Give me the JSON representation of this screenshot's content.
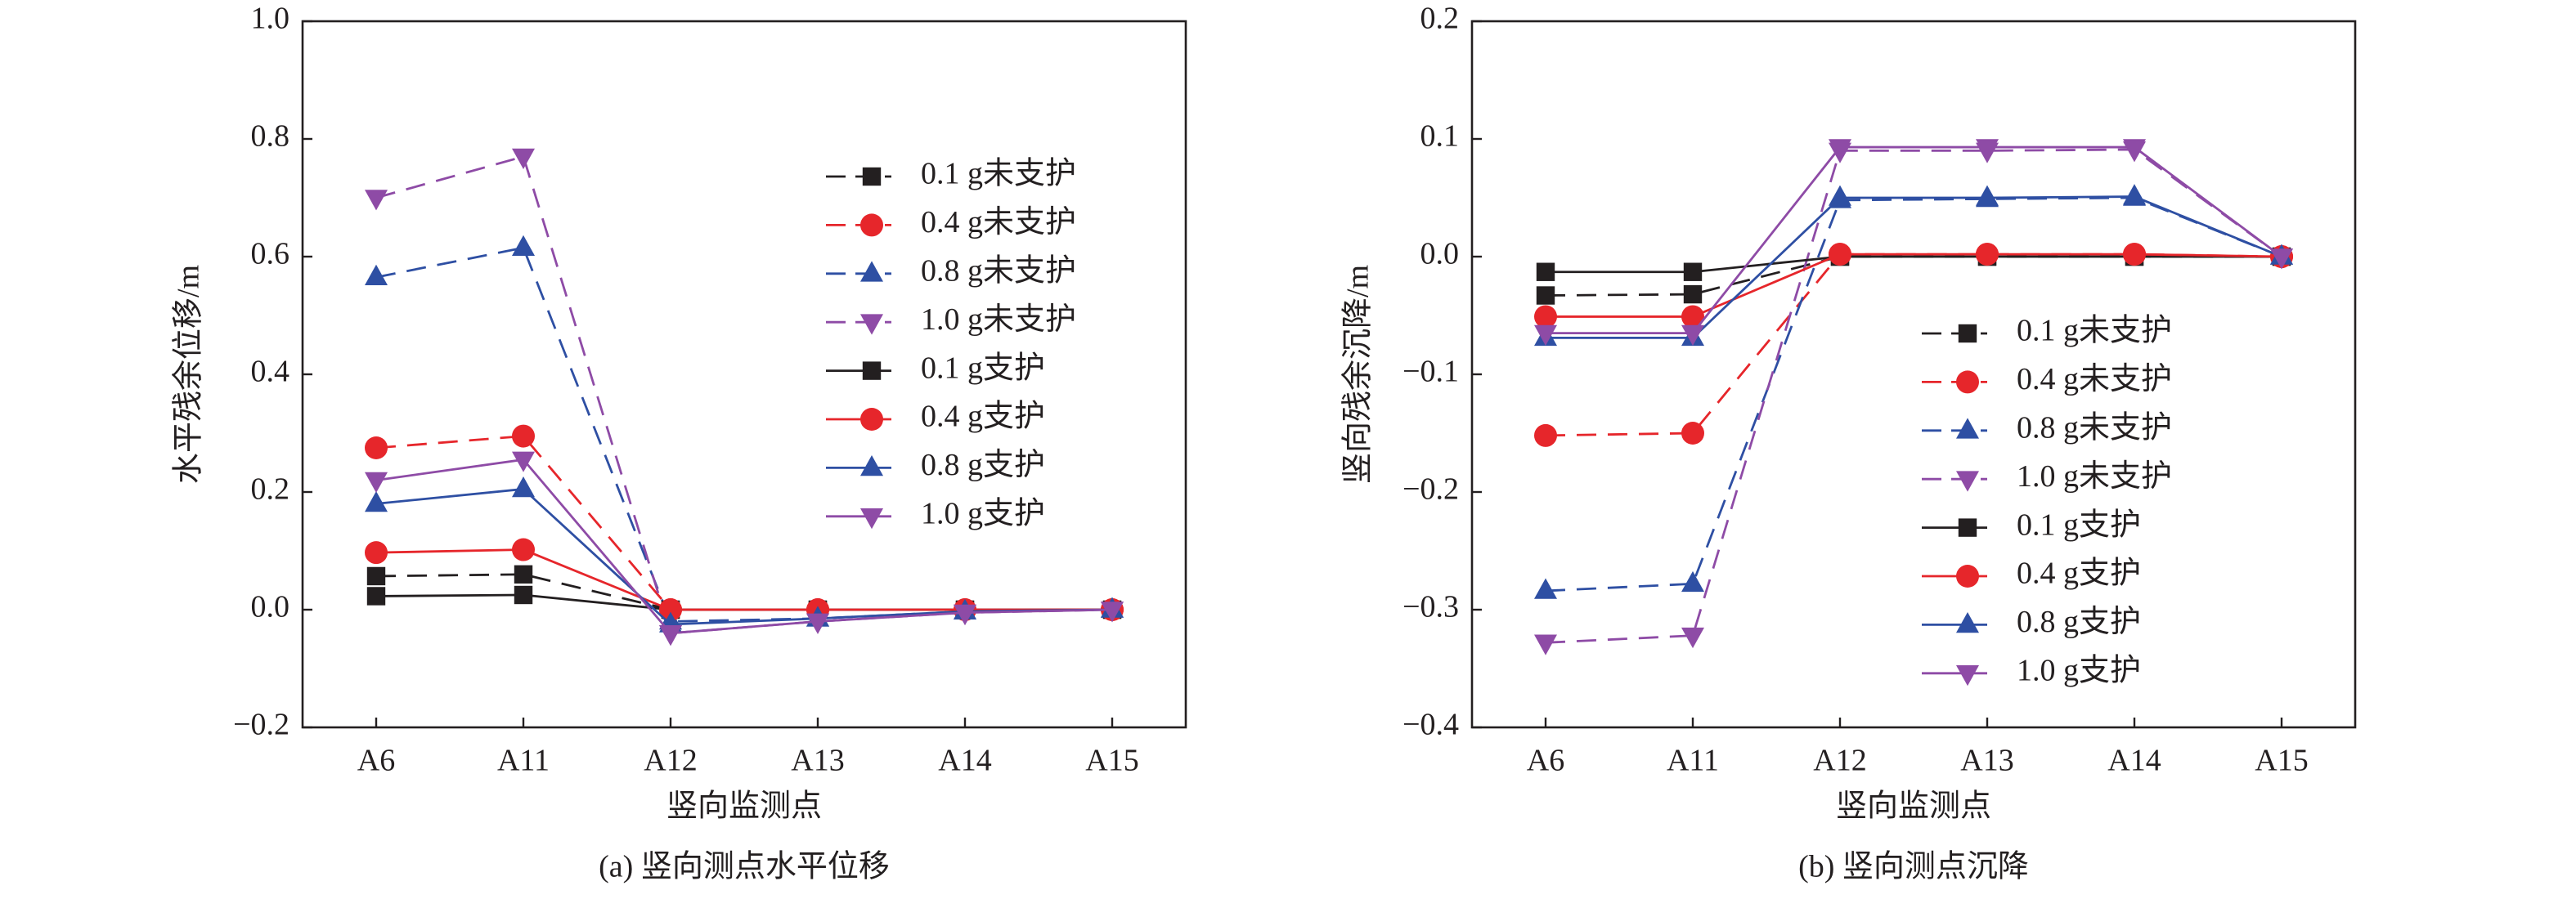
{
  "chart_data": [
    {
      "type": "line",
      "caption": "(a) 竖向测点水平位移",
      "xlabel": "竖向监测点",
      "ylabel": "水平残余位移/m",
      "categories": [
        "A6",
        "A11",
        "A12",
        "A13",
        "A14",
        "A15"
      ],
      "ylim": [
        -0.2,
        1.0
      ],
      "yticks": [
        {
          "value": -0.2,
          "label": "−0.2"
        },
        {
          "value": 0,
          "label": "0.0"
        },
        0.2,
        0.4,
        0.6,
        0.8,
        {
          "value": 1.0,
          "label": "1.0"
        }
      ],
      "series": [
        {
          "name": "0.1 g未支护",
          "color": "#231f20",
          "marker": "square",
          "dashed": true,
          "values": [
            0.057,
            0.06,
            0.0,
            0.0,
            0.0,
            0.0
          ]
        },
        {
          "name": "0.4 g未支护",
          "color": "#e6262b",
          "marker": "circle",
          "dashed": true,
          "values": [
            0.275,
            0.295,
            0.0,
            0.0,
            0.0,
            0.0
          ]
        },
        {
          "name": "0.8 g未支护",
          "color": "#2e4fa3",
          "marker": "triangle-up",
          "dashed": true,
          "values": [
            0.565,
            0.615,
            -0.02,
            -0.015,
            -0.003,
            0.0
          ]
        },
        {
          "name": "1.0 g未支护",
          "color": "#8e4ba6",
          "marker": "triangle-down",
          "dashed": true,
          "values": [
            0.7,
            0.77,
            -0.04,
            -0.02,
            -0.005,
            0.0
          ]
        },
        {
          "name": "0.1 g支护",
          "color": "#231f20",
          "marker": "square",
          "dashed": false,
          "values": [
            0.023,
            0.025,
            0.0,
            0.0,
            0.0,
            0.0
          ]
        },
        {
          "name": "0.4 g支护",
          "color": "#e6262b",
          "marker": "circle",
          "dashed": false,
          "values": [
            0.097,
            0.102,
            0.0,
            0.0,
            0.0,
            0.0
          ]
        },
        {
          "name": "0.8 g支护",
          "color": "#2e4fa3",
          "marker": "triangle-up",
          "dashed": false,
          "values": [
            0.18,
            0.205,
            -0.025,
            -0.015,
            -0.003,
            0.0
          ]
        },
        {
          "name": "1.0 g支护",
          "color": "#8e4ba6",
          "marker": "triangle-down",
          "dashed": false,
          "values": [
            0.22,
            0.255,
            -0.04,
            -0.02,
            -0.005,
            0.0
          ]
        }
      ]
    },
    {
      "type": "line",
      "caption": "(b) 竖向测点沉降",
      "xlabel": "竖向监测点",
      "ylabel": "竖向残余沉降/m",
      "categories": [
        "A6",
        "A11",
        "A12",
        "A13",
        "A14",
        "A15"
      ],
      "ylim": [
        -0.4,
        0.2
      ],
      "yticks": [
        {
          "value": -0.4,
          "label": "−0.4"
        },
        {
          "value": -0.3,
          "label": "−0.3"
        },
        {
          "value": -0.2,
          "label": "−0.2"
        },
        {
          "value": -0.1,
          "label": "−0.1"
        },
        {
          "value": 0,
          "label": "0.0"
        },
        0.1,
        0.2
      ],
      "series": [
        {
          "name": "0.1 g未支护",
          "color": "#231f20",
          "marker": "square",
          "dashed": true,
          "values": [
            -0.033,
            -0.032,
            0.0,
            0.0,
            0.0,
            0.0
          ]
        },
        {
          "name": "0.4 g未支护",
          "color": "#e6262b",
          "marker": "circle",
          "dashed": true,
          "values": [
            -0.152,
            -0.15,
            0.002,
            0.002,
            0.002,
            0.0
          ]
        },
        {
          "name": "0.8 g未支护",
          "color": "#2e4fa3",
          "marker": "triangle-up",
          "dashed": true,
          "values": [
            -0.284,
            -0.278,
            0.048,
            0.049,
            0.05,
            0.0
          ]
        },
        {
          "name": "1.0 g未支护",
          "color": "#8e4ba6",
          "marker": "triangle-down",
          "dashed": true,
          "values": [
            -0.328,
            -0.322,
            0.09,
            0.09,
            0.091,
            0.0
          ]
        },
        {
          "name": "0.1 g支护",
          "color": "#231f20",
          "marker": "square",
          "dashed": false,
          "values": [
            -0.013,
            -0.013,
            0.0,
            0.0,
            0.0,
            0.0
          ]
        },
        {
          "name": "0.4 g支护",
          "color": "#e6262b",
          "marker": "circle",
          "dashed": false,
          "values": [
            -0.051,
            -0.051,
            0.002,
            0.002,
            0.002,
            0.0
          ]
        },
        {
          "name": "0.8 g支护",
          "color": "#2e4fa3",
          "marker": "triangle-up",
          "dashed": false,
          "values": [
            -0.069,
            -0.069,
            0.05,
            0.05,
            0.051,
            0.0
          ]
        },
        {
          "name": "1.0 g支护",
          "color": "#8e4ba6",
          "marker": "triangle-down",
          "dashed": false,
          "values": [
            -0.065,
            -0.065,
            0.093,
            0.093,
            0.093,
            0.0
          ]
        }
      ]
    }
  ]
}
